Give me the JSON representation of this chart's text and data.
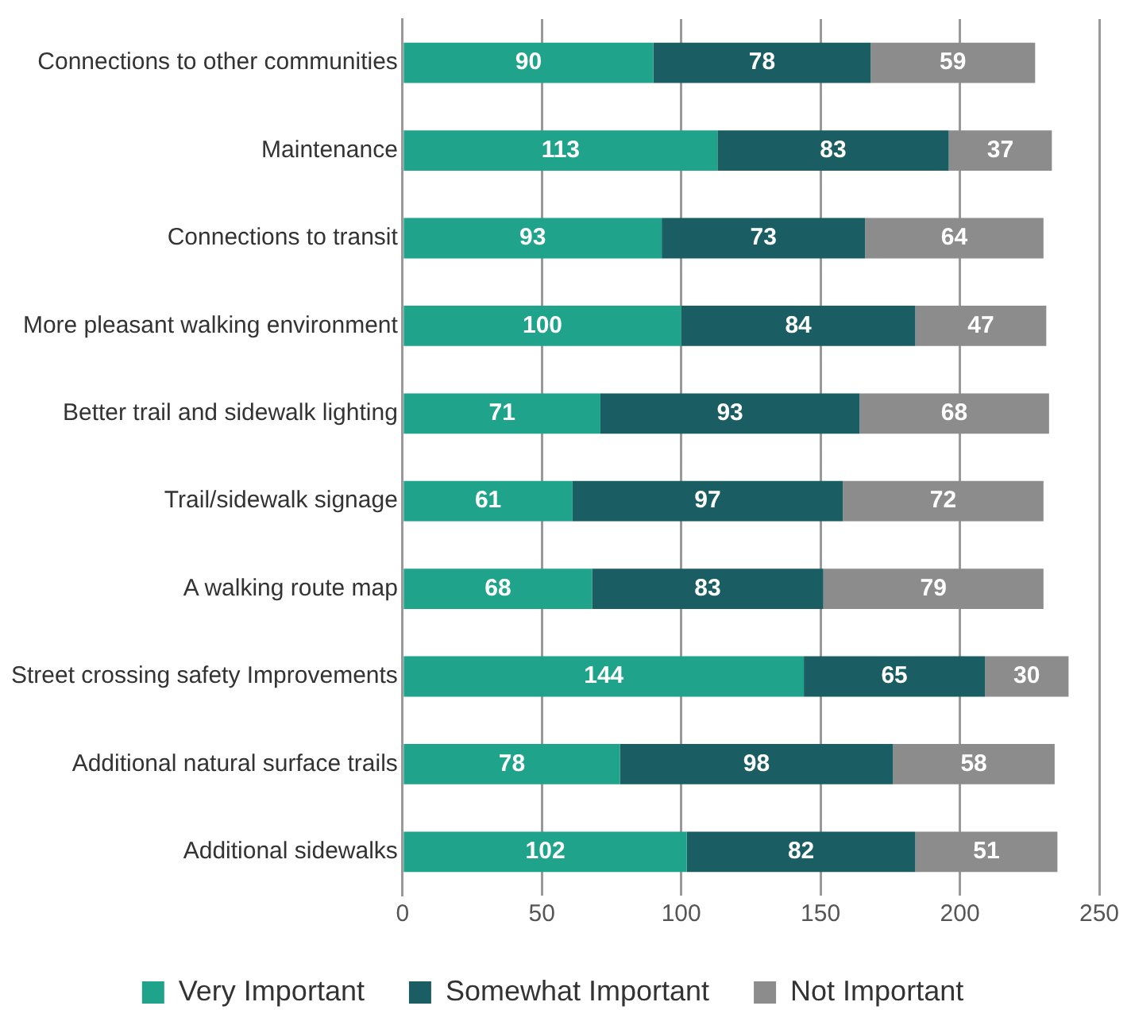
{
  "chart_data": {
    "type": "bar",
    "orientation": "horizontal",
    "stacked": true,
    "categories": [
      "Connections to other communities",
      "Maintenance",
      "Connections to transit",
      "More pleasant walking environment",
      "Better trail and sidewalk lighting",
      "Trail/sidewalk signage",
      "A walking route map",
      "Street crossing safety Improvements",
      "Additional natural surface trails",
      "Additional sidewalks"
    ],
    "series": [
      {
        "name": "Very Important",
        "color": "#1fa38a",
        "values": [
          90,
          113,
          93,
          100,
          71,
          61,
          68,
          144,
          78,
          102
        ]
      },
      {
        "name": "Somewhat Important",
        "color": "#1a5d62",
        "values": [
          78,
          83,
          73,
          84,
          93,
          97,
          83,
          65,
          98,
          82
        ]
      },
      {
        "name": "Not Important",
        "color": "#8c8c8c",
        "values": [
          59,
          37,
          64,
          47,
          68,
          72,
          79,
          30,
          58,
          51
        ]
      }
    ],
    "xlim": [
      0,
      250
    ],
    "xticks": [
      0,
      50,
      100,
      150,
      200,
      250
    ],
    "grid": "x",
    "legend": "bottom",
    "data_labels": true
  }
}
